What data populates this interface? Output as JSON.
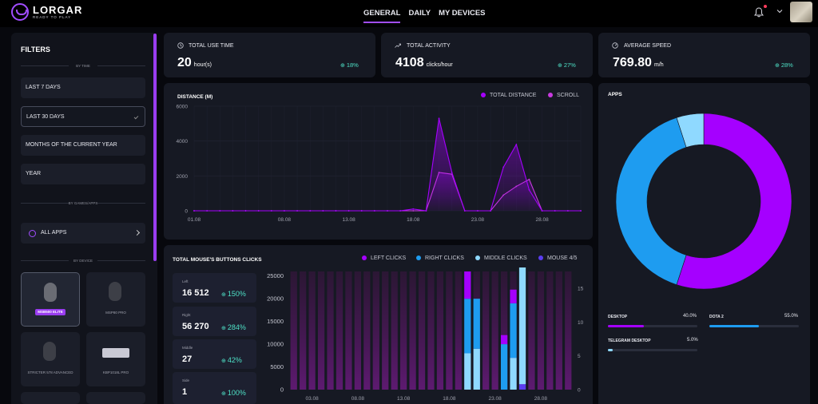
{
  "brand": {
    "name": "LORGAR",
    "tagline": "READY TO PLAY"
  },
  "nav": [
    {
      "label": "GENERAL",
      "active": true
    },
    {
      "label": "DAILY",
      "active": false
    },
    {
      "label": "MY DEVICES",
      "active": false
    }
  ],
  "header_icons": [
    "bell-icon",
    "chevron-down-icon",
    "avatar"
  ],
  "colors": {
    "accent": "#a14dff",
    "positive": "#4ee0c6",
    "left_clicks": "#a500ff",
    "right_clicks": "#1e9cf0",
    "middle_clicks": "#8fd9ff",
    "mouse45": "#5b3df0",
    "scroll": "#c93ae0"
  },
  "filters": {
    "title": "FILTERS",
    "by_time_label": "BY TIME",
    "time_options": [
      {
        "label": "LAST 7 DAYS",
        "selected": false
      },
      {
        "label": "LAST 30 DAYS",
        "selected": true
      },
      {
        "label": "MONTHS OF THE CURRENT YEAR",
        "selected": false
      },
      {
        "label": "YEAR",
        "selected": false
      }
    ],
    "by_games_label": "BY GAMES/APPS",
    "all_apps_label": "ALL APPS",
    "by_device_label": "BY DEVICE",
    "devices": [
      {
        "label": "MSB500 ELITE",
        "selected": true,
        "kind": "mouse"
      },
      {
        "label": "MSP80 PRO",
        "selected": false,
        "kind": "mouse"
      },
      {
        "label": "STRICTER 578 ADVANCED",
        "selected": false,
        "kind": "mouse"
      },
      {
        "label": "KBP1018L PRO",
        "selected": false,
        "kind": "keyboard"
      }
    ]
  },
  "stats": [
    {
      "label": "TOTAL USE TIME",
      "value": "20",
      "unit": "hour(s)",
      "change": "18%",
      "icon": "clock-icon"
    },
    {
      "label": "TOTAL ACTIVITY",
      "value": "4108",
      "unit": "clicks/hour",
      "change": "27%",
      "icon": "trend-icon"
    },
    {
      "label": "AVERAGE SPEED",
      "value": "769.80",
      "unit": "m/h",
      "change": "28%",
      "icon": "speed-icon"
    }
  ],
  "distance": {
    "title": "DISTANCE (M)",
    "legend": [
      "TOTAL DISTANCE",
      "SCROLL"
    ]
  },
  "clicks": {
    "title": "TOTAL MOUSE'S BUTTONS CLICKS",
    "legend": [
      "LEFT CLICKS",
      "RIGHT CLICKS",
      "MIDDLE CLICKS",
      "MOUSE 4/5"
    ],
    "cards": [
      {
        "name": "Left",
        "value": "16 512",
        "change": "150%"
      },
      {
        "name": "Right",
        "value": "56 270",
        "change": "284%"
      },
      {
        "name": "Middle",
        "value": "27",
        "change": "42%"
      },
      {
        "name": "Side",
        "value": "1",
        "change": "100%"
      }
    ]
  },
  "apps": {
    "title": "APPS",
    "items": [
      {
        "label": "DESKTOP",
        "pct": "40.0%"
      },
      {
        "label": "DOTA 2",
        "pct": "55.0%"
      },
      {
        "label": "TELEGRAM DESKTOP",
        "pct": "5.0%"
      }
    ]
  },
  "chart_data": [
    {
      "type": "area",
      "title": "DISTANCE (M)",
      "x": [
        "01.08",
        "02.08",
        "03.08",
        "04.08",
        "05.08",
        "06.08",
        "07.08",
        "08.08",
        "09.08",
        "10.08",
        "11.08",
        "12.08",
        "13.08",
        "14.08",
        "15.08",
        "16.08",
        "17.08",
        "18.08",
        "19.08",
        "20.08",
        "21.08",
        "22.08",
        "23.08",
        "24.08",
        "25.08",
        "26.08",
        "27.08",
        "28.08",
        "29.08",
        "30.08",
        "31.08"
      ],
      "x_tick_labels": [
        "01.08",
        "08.08",
        "13.08",
        "18.08",
        "23.08",
        "28.08"
      ],
      "y_ticks": [
        0,
        2000,
        4000,
        6000
      ],
      "ylim": [
        0,
        6000
      ],
      "series": [
        {
          "name": "TOTAL DISTANCE",
          "values": [
            0,
            0,
            0,
            0,
            0,
            0,
            0,
            0,
            0,
            0,
            0,
            0,
            0,
            0,
            0,
            0,
            0,
            100,
            0,
            5300,
            2200,
            0,
            0,
            0,
            2500,
            3800,
            1200,
            0,
            0,
            0,
            0
          ]
        },
        {
          "name": "SCROLL",
          "values": [
            0,
            0,
            0,
            0,
            0,
            0,
            0,
            0,
            0,
            0,
            0,
            0,
            0,
            0,
            0,
            0,
            0,
            0,
            0,
            2200,
            2100,
            0,
            0,
            0,
            900,
            1400,
            1800,
            0,
            0,
            0,
            0
          ]
        }
      ]
    },
    {
      "type": "bar",
      "title": "TOTAL MOUSE'S BUTTONS CLICKS",
      "categories": [
        "01.08",
        "02.08",
        "03.08",
        "04.08",
        "05.08",
        "06.08",
        "07.08",
        "08.08",
        "09.08",
        "10.08",
        "11.08",
        "12.08",
        "13.08",
        "14.08",
        "15.08",
        "16.08",
        "17.08",
        "18.08",
        "19.08",
        "20.08",
        "21.08",
        "22.08",
        "23.08",
        "24.08",
        "25.08",
        "26.08",
        "27.08",
        "28.08",
        "29.08",
        "30.08",
        "31.08"
      ],
      "x_tick_labels": [
        "03.08",
        "08.08",
        "13.08",
        "18.08",
        "23.08",
        "28.08"
      ],
      "y_ticks": [
        0,
        5000,
        10000,
        15000,
        20000,
        25000
      ],
      "ylim": [
        0,
        26000
      ],
      "y2_ticks": [
        0,
        5,
        10,
        15
      ],
      "y2lim": [
        0,
        17.5
      ],
      "stacked": true,
      "series": [
        {
          "name": "LEFT CLICKS",
          "values": [
            0,
            0,
            0,
            0,
            0,
            0,
            0,
            0,
            0,
            0,
            0,
            0,
            0,
            0,
            0,
            0,
            0,
            0,
            0,
            6000,
            0,
            0,
            0,
            2000,
            3000,
            0,
            0,
            0,
            0,
            0,
            0
          ]
        },
        {
          "name": "RIGHT CLICKS",
          "values": [
            0,
            0,
            0,
            0,
            0,
            0,
            0,
            0,
            0,
            0,
            0,
            0,
            0,
            0,
            0,
            0,
            0,
            0,
            0,
            12000,
            11000,
            0,
            0,
            10000,
            12000,
            0,
            0,
            0,
            0,
            0,
            0
          ]
        },
        {
          "name": "MIDDLE CLICKS",
          "values": [
            0,
            0,
            0,
            0,
            0,
            0,
            0,
            0,
            0,
            0,
            0,
            0,
            0,
            0,
            0,
            0,
            0,
            0,
            0,
            8000,
            9000,
            0,
            0,
            0,
            7000,
            26000,
            0,
            0,
            0,
            0,
            0
          ]
        },
        {
          "name": "MOUSE 4/5",
          "values": [
            0,
            0,
            0,
            0,
            0,
            0,
            0,
            0,
            0,
            0,
            0,
            0,
            0,
            0,
            0,
            0,
            0,
            0,
            0,
            0,
            0,
            0,
            0,
            0,
            0,
            1200,
            0,
            0,
            0,
            0,
            0
          ]
        }
      ]
    },
    {
      "type": "pie",
      "title": "APPS",
      "categories": [
        "DOTA 2",
        "DESKTOP",
        "TELEGRAM DESKTOP"
      ],
      "values": [
        55,
        40,
        5
      ]
    }
  ]
}
